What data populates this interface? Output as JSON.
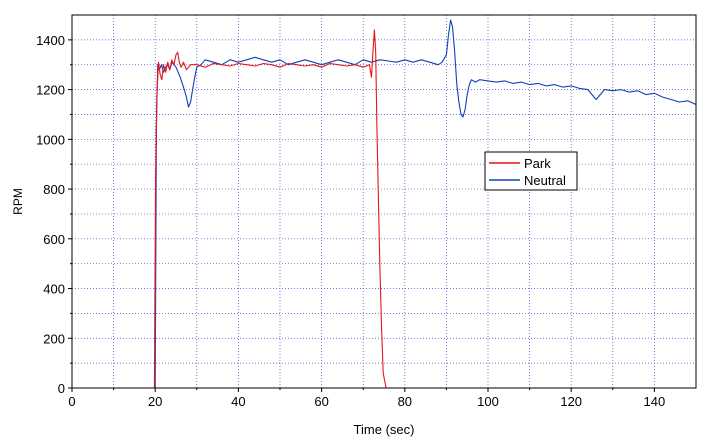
{
  "chart_data": {
    "type": "line",
    "xlabel": "Time (sec)",
    "ylabel": "RPM",
    "xlim": [
      0,
      150
    ],
    "ylim": [
      0,
      1500
    ],
    "xticks": [
      0,
      20,
      40,
      60,
      80,
      100,
      120,
      140
    ],
    "yticks": [
      0,
      200,
      400,
      600,
      800,
      1000,
      1200,
      1400
    ],
    "grid": true,
    "legend_position": "center-right",
    "series": [
      {
        "name": "Park",
        "color": "#e8141a",
        "x": [
          0,
          19.8,
          20.1,
          20.4,
          20.8,
          21.2,
          21.6,
          22.0,
          22.5,
          23.0,
          23.5,
          24.0,
          24.5,
          25.0,
          25.4,
          25.8,
          26.2,
          26.8,
          27.5,
          28.5,
          30,
          32,
          34,
          36,
          38,
          40,
          42,
          44,
          46,
          48,
          50,
          52,
          54,
          56,
          58,
          60,
          62,
          64,
          66,
          68,
          70,
          71.5,
          72.0,
          72.3,
          72.7,
          73.0,
          73.3,
          73.6,
          74.0,
          74.4,
          74.8,
          75.5,
          150
        ],
        "y": [
          0,
          0,
          850,
          1180,
          1310,
          1260,
          1240,
          1300,
          1270,
          1310,
          1280,
          1320,
          1300,
          1340,
          1350,
          1310,
          1290,
          1310,
          1280,
          1300,
          1300,
          1290,
          1305,
          1300,
          1295,
          1305,
          1300,
          1295,
          1305,
          1300,
          1290,
          1305,
          1300,
          1295,
          1300,
          1290,
          1305,
          1300,
          1295,
          1300,
          1290,
          1300,
          1250,
          1340,
          1440,
          1350,
          1050,
          800,
          500,
          250,
          60,
          0,
          0
        ]
      },
      {
        "name": "Neutral",
        "color": "#1240b8",
        "x": [
          0,
          20.0,
          20.3,
          20.6,
          21.0,
          21.5,
          22.0,
          22.5,
          23.0,
          23.5,
          24.0,
          24.5,
          25.0,
          26.0,
          27.0,
          27.5,
          28.0,
          28.5,
          29.0,
          29.5,
          30.0,
          31.0,
          32.0,
          34.0,
          36.0,
          38.0,
          40.0,
          42.0,
          44.0,
          46.0,
          48.0,
          50.0,
          52.0,
          54.0,
          56.0,
          58.0,
          60.0,
          62.0,
          64.0,
          66.0,
          68.0,
          70.0,
          72.0,
          74.0,
          76.0,
          78.0,
          80.0,
          82.0,
          84.0,
          86.0,
          88.0,
          89.0,
          90.0,
          90.5,
          91.0,
          91.5,
          92.0,
          92.5,
          93.0,
          93.5,
          94.0,
          94.5,
          95.0,
          95.5,
          96.0,
          97.0,
          98.0,
          100,
          102,
          104,
          106,
          108,
          110,
          112,
          114,
          116,
          118,
          120,
          122,
          124,
          125,
          126,
          127,
          128,
          130,
          132,
          134,
          136,
          138,
          140,
          142,
          144,
          146,
          148,
          150
        ],
        "y": [
          0,
          0,
          1050,
          1300,
          1280,
          1300,
          1270,
          1290,
          1300,
          1280,
          1310,
          1300,
          1290,
          1250,
          1200,
          1170,
          1130,
          1150,
          1200,
          1250,
          1290,
          1300,
          1320,
          1310,
          1300,
          1320,
          1310,
          1320,
          1330,
          1320,
          1310,
          1320,
          1300,
          1310,
          1320,
          1310,
          1300,
          1310,
          1320,
          1310,
          1300,
          1320,
          1310,
          1320,
          1315,
          1310,
          1320,
          1310,
          1320,
          1310,
          1300,
          1310,
          1340,
          1420,
          1480,
          1450,
          1350,
          1220,
          1150,
          1100,
          1090,
          1120,
          1180,
          1220,
          1240,
          1230,
          1240,
          1235,
          1230,
          1235,
          1225,
          1230,
          1220,
          1225,
          1215,
          1220,
          1210,
          1215,
          1205,
          1200,
          1180,
          1160,
          1180,
          1200,
          1195,
          1200,
          1190,
          1195,
          1180,
          1185,
          1170,
          1160,
          1150,
          1155,
          1140
        ]
      }
    ]
  }
}
